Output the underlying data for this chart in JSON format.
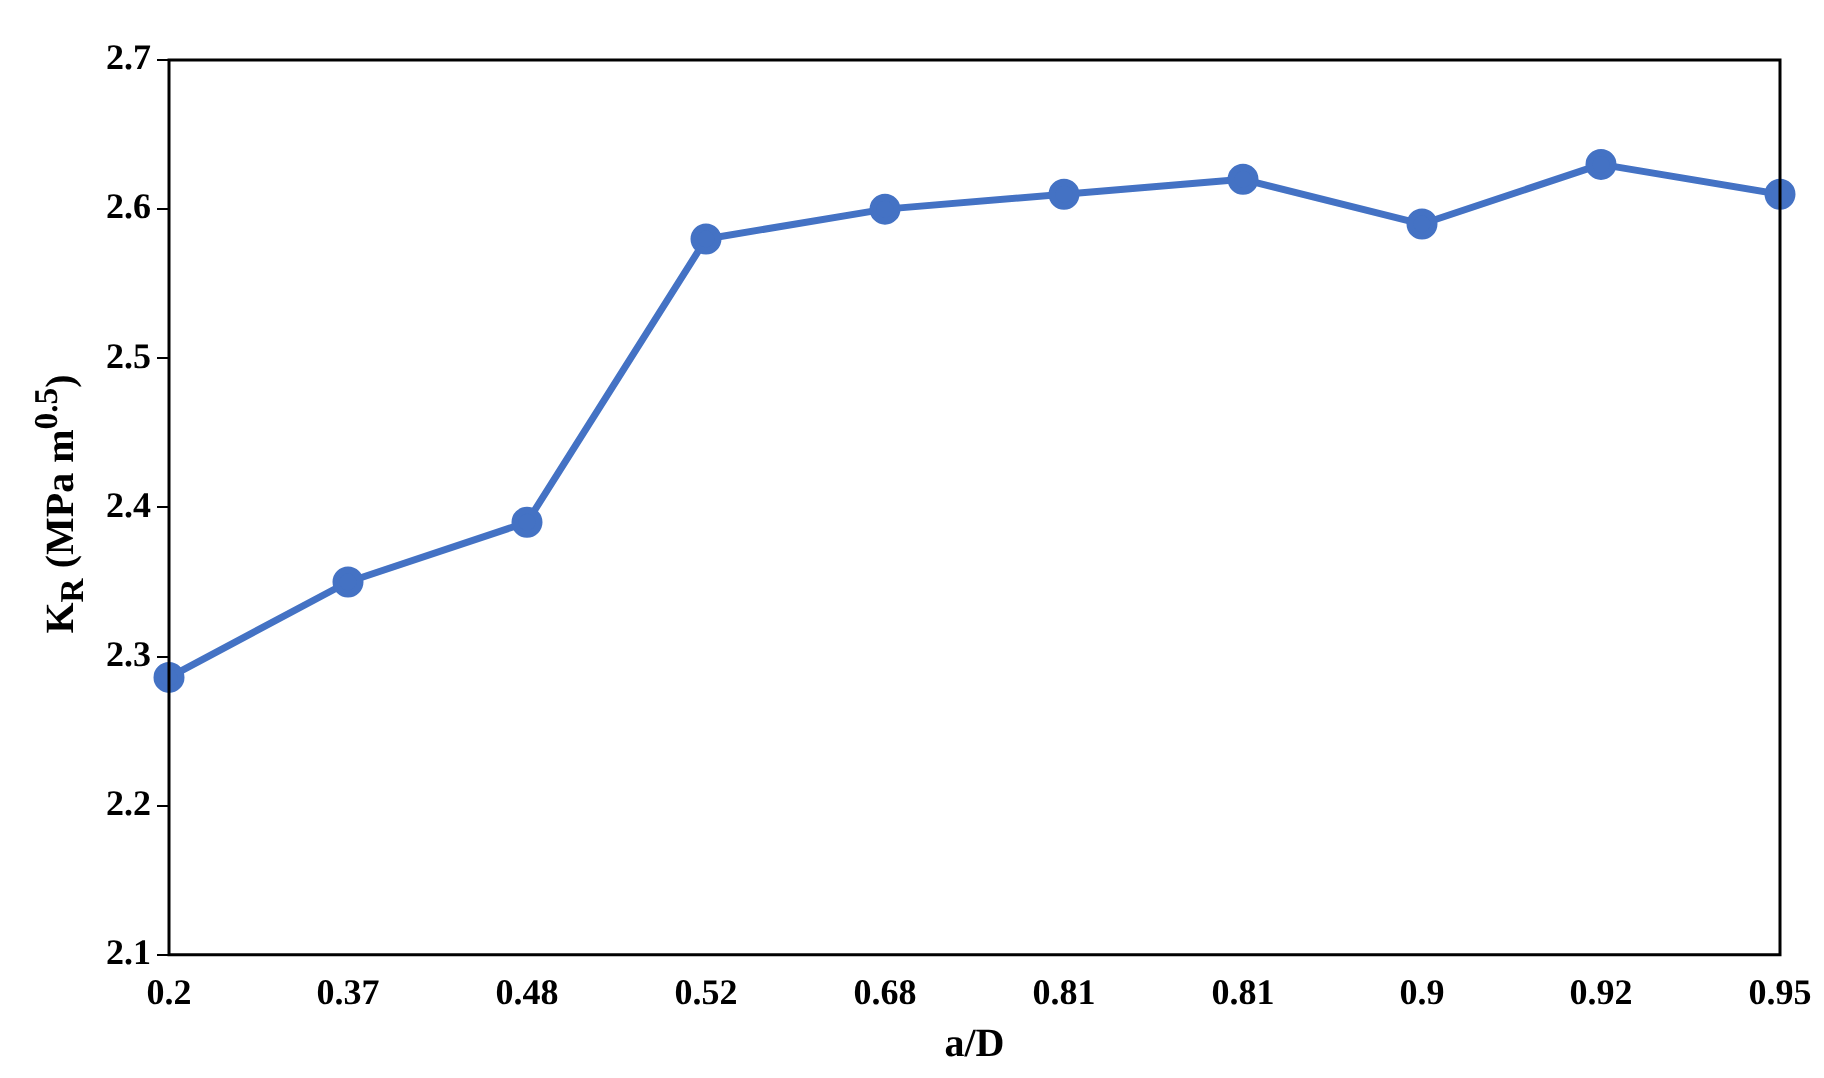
{
  "chart_data": {
    "type": "line",
    "xlabel": "a/D",
    "ylabel": "K$_{R}$ (MPa m$^{0.5}$)",
    "categories": [
      "0.2",
      "0.37",
      "0.48",
      "0.52",
      "0.68",
      "0.81",
      "0.81",
      "0.9",
      "0.92",
      "0.95"
    ],
    "series": [
      {
        "color": "#4472c4",
        "values": [
          2.286,
          2.35,
          2.39,
          2.58,
          2.6,
          2.61,
          2.62,
          2.59,
          2.63,
          2.61
        ]
      }
    ],
    "ylim": [
      2.1,
      2.7
    ],
    "yticks": [
      2.1,
      2.2,
      2.3,
      2.4,
      2.5,
      2.6,
      2.7
    ],
    "grid": false,
    "legend": false,
    "marker": "circle",
    "line_style": "solid"
  }
}
